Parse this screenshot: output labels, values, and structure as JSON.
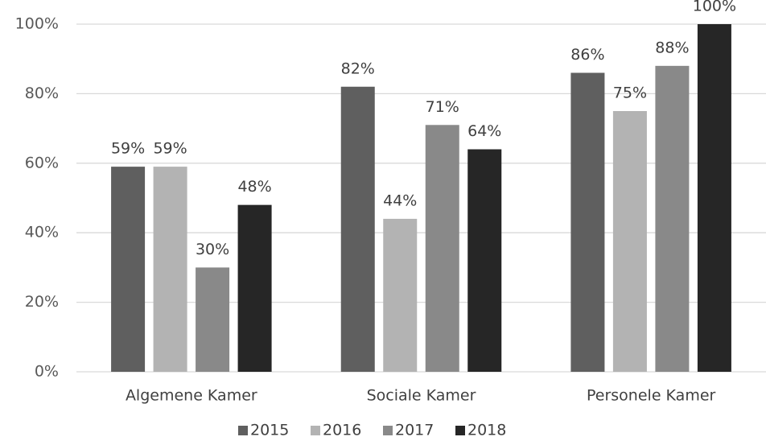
{
  "chart_data": {
    "type": "bar",
    "categories": [
      "Algemene Kamer",
      "Sociale Kamer",
      "Personele Kamer"
    ],
    "series": [
      {
        "name": "2015",
        "color": "#5f5f5f",
        "values": [
          59,
          82,
          86
        ],
        "value_labels": [
          "59%",
          "82%",
          "86%"
        ]
      },
      {
        "name": "2016",
        "color": "#b3b3b3",
        "values": [
          59,
          44,
          75
        ],
        "value_labels": [
          "59%",
          "44%",
          "75%"
        ]
      },
      {
        "name": "2017",
        "color": "#898989",
        "values": [
          30,
          71,
          88
        ],
        "value_labels": [
          "30%",
          "71%",
          "88%"
        ]
      },
      {
        "name": "2018",
        "color": "#262626",
        "values": [
          48,
          64,
          100
        ],
        "value_labels": [
          "48%",
          "64%",
          "100%"
        ]
      }
    ],
    "ylim": [
      0,
      100
    ],
    "yticks": [
      {
        "value": 0,
        "label": "0%"
      },
      {
        "value": 20,
        "label": "20%"
      },
      {
        "value": 40,
        "label": "40%"
      },
      {
        "value": 60,
        "label": "60%"
      },
      {
        "value": 80,
        "label": "80%"
      },
      {
        "value": 100,
        "label": "100%"
      }
    ],
    "grid": true,
    "legend": "bottom"
  }
}
